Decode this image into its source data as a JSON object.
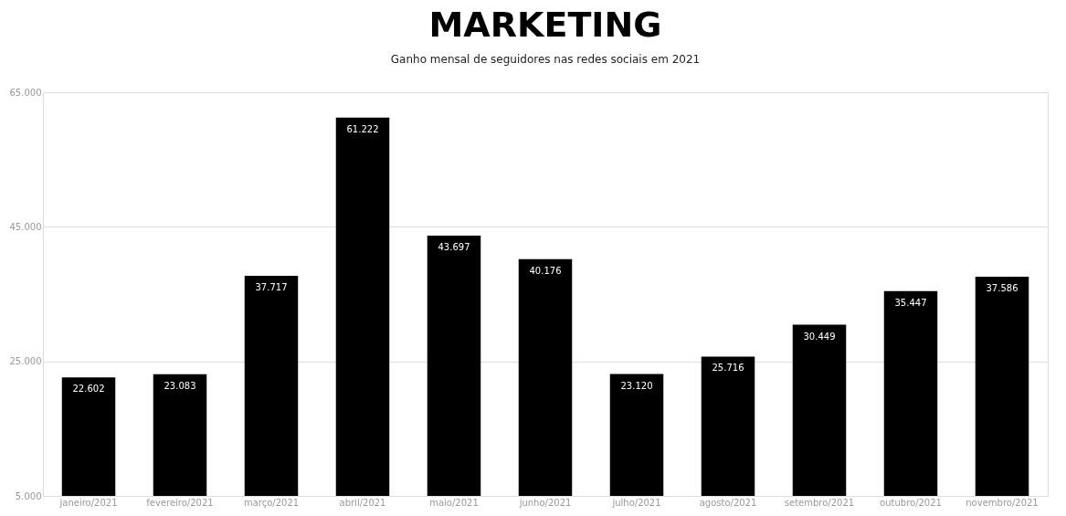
{
  "chart_data": {
    "type": "bar",
    "title": "MARKETING",
    "subtitle": "Ganho mensal de seguidores nas redes sociais em 2021",
    "categories": [
      "janeiro/2021",
      "fevereiro/2021",
      "março/2021",
      "abril/2021",
      "maio/2021",
      "junho/2021",
      "julho/2021",
      "agosto/2021",
      "setembro/2021",
      "outubro/2021",
      "novembro/2021"
    ],
    "values": [
      22602,
      23083,
      37717,
      61222,
      43697,
      40176,
      23120,
      25716,
      30449,
      35447,
      37586
    ],
    "value_labels": [
      "22.602",
      "23.083",
      "37.717",
      "61.222",
      "43.697",
      "40.176",
      "23.120",
      "25.716",
      "30.449",
      "35.447",
      "37.586"
    ],
    "color": "#000000",
    "ylim": [
      5000,
      65000
    ],
    "yticks": [
      {
        "value": 5000,
        "label": "5.000"
      },
      {
        "value": 25000,
        "label": "25.000"
      },
      {
        "value": 45000,
        "label": "45.000"
      },
      {
        "value": 65000,
        "label": "65.000"
      }
    ],
    "grid": "y"
  }
}
